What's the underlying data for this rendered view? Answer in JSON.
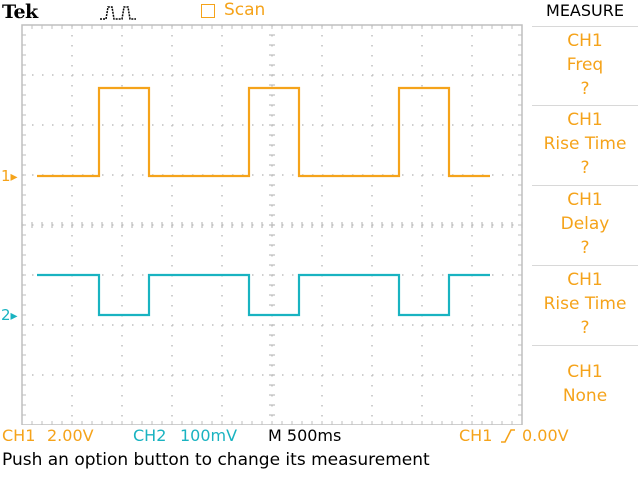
{
  "header": {
    "brand": "Tek",
    "acquire_icon": "acquisition-pulse-icon",
    "trigger_state": "Scan",
    "colors": {
      "ch1": "#f5a31a",
      "ch2": "#19b3c1",
      "grid": "#bfbfbf"
    }
  },
  "menu": {
    "title": "MEASURE",
    "items": [
      {
        "lines": [
          "CH1",
          "Freq",
          "?"
        ]
      },
      {
        "lines": [
          "CH1",
          "Rise Time",
          "?"
        ]
      },
      {
        "lines": [
          "CH1",
          "Delay",
          "?"
        ]
      },
      {
        "lines": [
          "CH1",
          "Rise Time",
          "?"
        ]
      },
      {
        "lines": [
          "CH1",
          "None"
        ]
      }
    ]
  },
  "markers": {
    "ch1": "1",
    "ch2": "2"
  },
  "status": {
    "ch1_label": "CH1",
    "ch1_scale": "2.00V",
    "ch2_label": "CH2",
    "ch2_scale": "100mV",
    "timebase": "M 500ms",
    "trigger_source": "CH1",
    "trigger_slope_icon": "rising-edge-icon",
    "trigger_level": "0.00V"
  },
  "message": "Push an option button to change its measurement"
}
